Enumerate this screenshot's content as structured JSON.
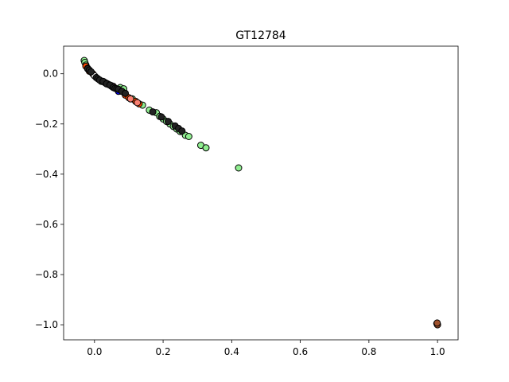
{
  "chart_data": {
    "type": "scatter",
    "title": "GT12784",
    "xlabel": "",
    "ylabel": "",
    "xlim": [
      -0.09,
      1.06
    ],
    "ylim": [
      -1.06,
      0.11
    ],
    "xticks": [
      0.0,
      0.2,
      0.4,
      0.6,
      0.8,
      1.0
    ],
    "xtick_labels": [
      "0.0",
      "0.2",
      "0.4",
      "0.6",
      "0.8",
      "1.0"
    ],
    "yticks": [
      0.0,
      -0.2,
      -0.4,
      -0.6,
      -0.8,
      -1.0
    ],
    "ytick_labels": [
      "0.0",
      "−0.2",
      "−0.4",
      "−0.6",
      "−0.8",
      "−1.0"
    ],
    "grid": false,
    "series": [
      {
        "color": "#90ee90",
        "points": [
          [
            -0.03,
            0.053
          ],
          [
            -0.028,
            0.045
          ],
          [
            -0.025,
            0.035
          ],
          [
            0.02,
            -0.03
          ],
          [
            0.05,
            -0.05
          ],
          [
            0.075,
            -0.055
          ],
          [
            0.085,
            -0.06
          ],
          [
            0.11,
            -0.1
          ],
          [
            0.14,
            -0.125
          ],
          [
            0.16,
            -0.145
          ],
          [
            0.18,
            -0.155
          ],
          [
            0.19,
            -0.17
          ],
          [
            0.2,
            -0.18
          ],
          [
            0.21,
            -0.19
          ],
          [
            0.22,
            -0.2
          ],
          [
            0.23,
            -0.21
          ],
          [
            0.24,
            -0.22
          ],
          [
            0.25,
            -0.23
          ],
          [
            0.265,
            -0.245
          ],
          [
            0.275,
            -0.25
          ],
          [
            0.31,
            -0.285
          ],
          [
            0.325,
            -0.295
          ],
          [
            0.42,
            -0.375
          ]
        ]
      },
      {
        "color": "#ff4500",
        "points": [
          [
            -0.025,
            0.03
          ],
          [
            -0.02,
            0.022
          ],
          [
            -0.015,
            0.01
          ],
          [
            -0.005,
            0.0
          ],
          [
            0.028,
            -0.033
          ],
          [
            0.09,
            -0.085
          ],
          [
            0.1,
            -0.095
          ],
          [
            0.12,
            -0.11
          ],
          [
            0.13,
            -0.12
          ]
        ]
      },
      {
        "color": "#fa8072",
        "points": [
          [
            0.03,
            -0.035
          ],
          [
            0.055,
            -0.05
          ],
          [
            0.08,
            -0.07
          ],
          [
            0.105,
            -0.1
          ],
          [
            0.125,
            -0.115
          ]
        ]
      },
      {
        "color": "#da70d6",
        "points": [
          [
            0.035,
            -0.038
          ],
          [
            0.04,
            -0.042
          ],
          [
            0.05,
            -0.048
          ]
        ]
      },
      {
        "color": "#ffffff",
        "points": [
          [
            0.0,
            -0.008
          ]
        ]
      },
      {
        "color": "#0000ff",
        "points": [
          [
            0.07,
            -0.07
          ]
        ]
      },
      {
        "color": "#222222",
        "points": [
          [
            -0.02,
            0.02
          ],
          [
            -0.015,
            0.015
          ],
          [
            -0.01,
            0.008
          ],
          [
            0.005,
            -0.015
          ],
          [
            0.01,
            -0.02
          ],
          [
            0.015,
            -0.025
          ],
          [
            0.025,
            -0.03
          ],
          [
            0.035,
            -0.04
          ],
          [
            0.045,
            -0.045
          ],
          [
            0.055,
            -0.055
          ],
          [
            0.06,
            -0.058
          ],
          [
            0.065,
            -0.06
          ],
          [
            0.07,
            -0.062
          ],
          [
            0.08,
            -0.07
          ],
          [
            0.09,
            -0.078
          ],
          [
            0.17,
            -0.152
          ],
          [
            0.195,
            -0.172
          ],
          [
            0.215,
            -0.19
          ],
          [
            0.235,
            -0.208
          ],
          [
            0.245,
            -0.218
          ],
          [
            0.255,
            -0.228
          ]
        ]
      },
      {
        "color": "#a0522d",
        "points": [
          [
            0.998,
            -0.995
          ],
          [
            1.0,
            -1.0
          ],
          [
            0.999,
            -0.993
          ]
        ]
      }
    ]
  }
}
